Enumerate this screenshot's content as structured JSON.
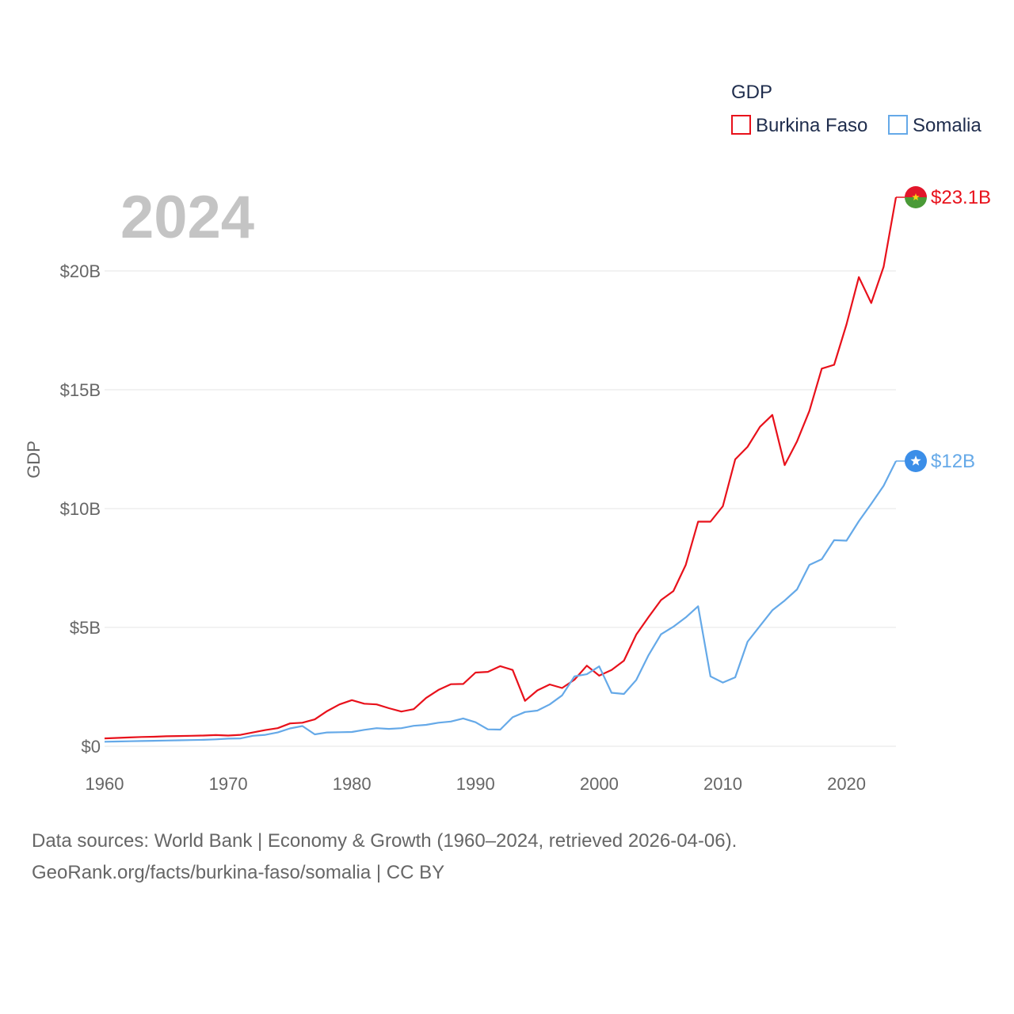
{
  "chart_data": {
    "type": "line",
    "title": "GDP",
    "current_year_label": "2024",
    "ylabel": "GDP",
    "xlabel": "",
    "xlim": [
      1960,
      2024
    ],
    "ylim": [
      0,
      23.1
    ],
    "x_ticks": [
      1960,
      1970,
      1980,
      1990,
      2000,
      2010,
      2020
    ],
    "y_ticks": [
      {
        "value": 0,
        "label": "$0"
      },
      {
        "value": 5,
        "label": "$5B"
      },
      {
        "value": 10,
        "label": "$10B"
      },
      {
        "value": 15,
        "label": "$15B"
      },
      {
        "value": 20,
        "label": "$20B"
      }
    ],
    "grid": true,
    "legend_position": "top-right",
    "x": [
      1960,
      1961,
      1962,
      1963,
      1964,
      1965,
      1966,
      1967,
      1968,
      1969,
      1970,
      1971,
      1972,
      1973,
      1974,
      1975,
      1976,
      1977,
      1978,
      1979,
      1980,
      1981,
      1982,
      1983,
      1984,
      1985,
      1986,
      1987,
      1988,
      1989,
      1990,
      1991,
      1992,
      1993,
      1994,
      1995,
      1996,
      1997,
      1998,
      1999,
      2000,
      2001,
      2002,
      2003,
      2004,
      2005,
      2006,
      2007,
      2008,
      2009,
      2010,
      2011,
      2012,
      2013,
      2014,
      2015,
      2016,
      2017,
      2018,
      2019,
      2020,
      2021,
      2022,
      2023,
      2024
    ],
    "series": [
      {
        "name": "Burkina Faso",
        "color": "#e8111b",
        "end_label": "$23.1B",
        "values": [
          0.33,
          0.35,
          0.37,
          0.39,
          0.4,
          0.42,
          0.43,
          0.44,
          0.45,
          0.47,
          0.45,
          0.48,
          0.58,
          0.68,
          0.76,
          0.96,
          0.99,
          1.13,
          1.48,
          1.76,
          1.94,
          1.79,
          1.76,
          1.6,
          1.46,
          1.56,
          2.03,
          2.37,
          2.61,
          2.62,
          3.1,
          3.13,
          3.37,
          3.21,
          1.91,
          2.35,
          2.6,
          2.45,
          2.8,
          3.39,
          2.97,
          3.21,
          3.6,
          4.7,
          5.44,
          6.15,
          6.53,
          7.63,
          9.45,
          9.45,
          10.1,
          12.07,
          12.6,
          13.44,
          13.94,
          11.83,
          12.83,
          14.11,
          15.89,
          16.05,
          17.75,
          19.74,
          18.65,
          20.17,
          23.1
        ]
      },
      {
        "name": "Somalia",
        "color": "#65a9e8",
        "end_label": "$12B",
        "values": [
          0.19,
          0.2,
          0.21,
          0.22,
          0.23,
          0.24,
          0.25,
          0.26,
          0.27,
          0.29,
          0.32,
          0.33,
          0.44,
          0.48,
          0.58,
          0.75,
          0.85,
          0.5,
          0.58,
          0.59,
          0.6,
          0.69,
          0.76,
          0.73,
          0.76,
          0.86,
          0.9,
          0.99,
          1.04,
          1.17,
          1.01,
          0.71,
          0.7,
          1.22,
          1.44,
          1.5,
          1.76,
          2.14,
          2.94,
          3.03,
          3.36,
          2.25,
          2.2,
          2.79,
          3.84,
          4.71,
          5.03,
          5.42,
          5.89,
          2.94,
          2.68,
          2.9,
          4.4,
          5.06,
          5.72,
          6.13,
          6.6,
          7.63,
          7.87,
          8.67,
          8.65,
          9.47,
          10.2,
          10.96,
          12.0
        ]
      }
    ]
  },
  "flags": {
    "burkina_faso": {
      "top_color": "#e2162b",
      "bottom_color": "#4a9a37",
      "star_color": "#f7d116"
    },
    "somalia": {
      "bg_color": "#3b8ee8",
      "star_color": "#ffffff"
    }
  },
  "footer": {
    "line1": "Data sources: World Bank | Economy & Growth (1960–2024, retrieved 2026-04-06).",
    "line2": "GeoRank.org/facts/burkina-faso/somalia | CC BY"
  }
}
